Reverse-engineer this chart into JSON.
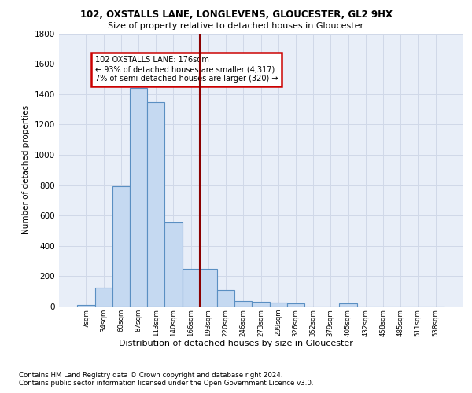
{
  "title1": "102, OXSTALLS LANE, LONGLEVENS, GLOUCESTER, GL2 9HX",
  "title2": "Size of property relative to detached houses in Gloucester",
  "xlabel": "Distribution of detached houses by size in Gloucester",
  "ylabel": "Number of detached properties",
  "footnote1": "Contains HM Land Registry data © Crown copyright and database right 2024.",
  "footnote2": "Contains public sector information licensed under the Open Government Licence v3.0.",
  "bin_labels": [
    "7sqm",
    "34sqm",
    "60sqm",
    "87sqm",
    "113sqm",
    "140sqm",
    "166sqm",
    "193sqm",
    "220sqm",
    "246sqm",
    "273sqm",
    "299sqm",
    "326sqm",
    "352sqm",
    "379sqm",
    "405sqm",
    "432sqm",
    "458sqm",
    "485sqm",
    "511sqm",
    "538sqm"
  ],
  "bar_values": [
    10,
    125,
    790,
    1440,
    1345,
    555,
    248,
    248,
    110,
    35,
    30,
    25,
    20,
    0,
    0,
    20,
    0,
    0,
    0,
    0,
    0
  ],
  "bar_color": "#c5d9f1",
  "bar_edge_color": "#5a8fc2",
  "vline_x": 6.5,
  "vline_color": "#8b0000",
  "annotation_text": "102 OXSTALLS LANE: 176sqm\n← 93% of detached houses are smaller (4,317)\n7% of semi-detached houses are larger (320) →",
  "annotation_box_facecolor": "#ffffff",
  "annotation_box_edgecolor": "#cc0000",
  "grid_color": "#d0d8e8",
  "bg_color": "#e8eef8",
  "ylim": [
    0,
    1800
  ],
  "yticks": [
    0,
    200,
    400,
    600,
    800,
    1000,
    1200,
    1400,
    1600,
    1800
  ]
}
